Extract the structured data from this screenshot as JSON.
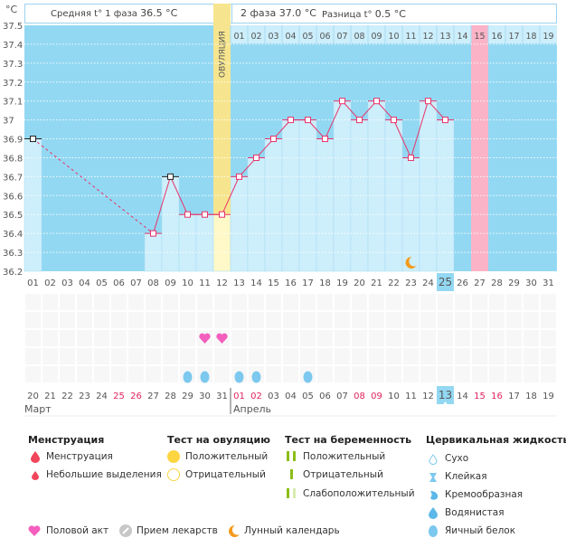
{
  "header": {
    "unit": "°C",
    "phase1_label": "Средняя t° 1 фаза",
    "phase1_value": "36.5 °C",
    "phase2_label": "2 фаза",
    "phase2_value": "37.0 °C",
    "diff_label": "Разница t°",
    "diff_value": "0.5 °C",
    "ovulation_label": "ОВУЛЯЦИЯ"
  },
  "chart_data": {
    "type": "line",
    "title": "",
    "xlabel": "Cycle day",
    "ylabel": "°C",
    "ylim": [
      36.2,
      37.5
    ],
    "yticks": [
      36.2,
      36.3,
      36.4,
      36.5,
      36.6,
      36.7,
      36.8,
      36.9,
      37,
      37.1,
      37.2,
      37.3,
      37.4,
      37.5
    ],
    "ytick_labels": [
      "36.2",
      "36.3",
      "36.4",
      "36.5",
      "36.6",
      "36.7",
      "36.8",
      "36.9",
      "37",
      "37.1",
      "37.2",
      "37.3",
      "37.4",
      "37.5"
    ],
    "cycle_days": [
      "01",
      "02",
      "03",
      "04",
      "05",
      "06",
      "07",
      "08",
      "09",
      "10",
      "11",
      "12",
      "13",
      "14",
      "15",
      "16",
      "17",
      "18",
      "19",
      "20",
      "21",
      "22",
      "23",
      "24",
      "25",
      "26",
      "27",
      "28",
      "29",
      "30",
      "31"
    ],
    "temperatures": [
      36.9,
      null,
      null,
      null,
      null,
      null,
      null,
      36.4,
      36.7,
      36.5,
      36.5,
      36.5,
      36.7,
      36.8,
      36.9,
      37.0,
      37.0,
      36.9,
      37.1,
      37.0,
      37.1,
      37.0,
      36.8,
      37.1,
      37.0,
      null,
      null,
      null,
      null,
      null,
      null
    ],
    "excluded_points_days": [
      "01",
      "09"
    ],
    "ovulation_day": "12",
    "luteal_day_numbers": [
      "01",
      "02",
      "03",
      "04",
      "05",
      "06",
      "07",
      "08",
      "09",
      "10",
      "11",
      "12",
      "13",
      "14",
      "15",
      "16",
      "17",
      "18",
      "19"
    ],
    "expected_period_luteal_day": "15",
    "expected_period_cycle_day": "27",
    "today_cycle_day": "25",
    "moon_day": "23",
    "grid": true
  },
  "calendar": {
    "dates": [
      {
        "d": "20",
        "weekend": false
      },
      {
        "d": "21",
        "weekend": false
      },
      {
        "d": "22",
        "weekend": false
      },
      {
        "d": "23",
        "weekend": false
      },
      {
        "d": "24",
        "weekend": false
      },
      {
        "d": "25",
        "weekend": true
      },
      {
        "d": "26",
        "weekend": true
      },
      {
        "d": "27",
        "weekend": false
      },
      {
        "d": "28",
        "weekend": false
      },
      {
        "d": "29",
        "weekend": false
      },
      {
        "d": "30",
        "weekend": false
      },
      {
        "d": "31",
        "weekend": false
      },
      {
        "d": "01",
        "weekend": true
      },
      {
        "d": "02",
        "weekend": true
      },
      {
        "d": "03",
        "weekend": false
      },
      {
        "d": "04",
        "weekend": false
      },
      {
        "d": "05",
        "weekend": false
      },
      {
        "d": "06",
        "weekend": false
      },
      {
        "d": "07",
        "weekend": false
      },
      {
        "d": "08",
        "weekend": true
      },
      {
        "d": "09",
        "weekend": true
      },
      {
        "d": "10",
        "weekend": false
      },
      {
        "d": "11",
        "weekend": false
      },
      {
        "d": "12",
        "weekend": false
      },
      {
        "d": "13",
        "weekend": false,
        "today": true
      },
      {
        "d": "14",
        "weekend": false
      },
      {
        "d": "15",
        "weekend": true
      },
      {
        "d": "16",
        "weekend": true
      },
      {
        "d": "17",
        "weekend": false
      },
      {
        "d": "18",
        "weekend": false
      },
      {
        "d": "19",
        "weekend": false
      }
    ],
    "month1": "Март",
    "month2": "Апрель",
    "intercourse_days": [
      "11",
      "12"
    ],
    "eggwhite_days": [
      "10",
      "11",
      "13",
      "14",
      "17"
    ]
  },
  "legend": {
    "menstruation": {
      "title": "Менструация",
      "items": [
        "Менструация",
        "Небольшие выделения"
      ]
    },
    "ovulation_test": {
      "title": "Тест на овуляцию",
      "items": [
        "Положительный",
        "Отрицательный"
      ]
    },
    "pregnancy_test": {
      "title": "Тест на беременность",
      "items": [
        "Положительный",
        "Отрицательный",
        "Слабоположительный"
      ]
    },
    "cervical_fluid": {
      "title": "Цервикальная жидкость",
      "items": [
        "Сухо",
        "Клейкая",
        "Кремообразная",
        "Водянистая",
        "Яичный белок"
      ]
    },
    "bottom": [
      "Половой акт",
      "Прием лекарств",
      "Лунный календарь"
    ]
  },
  "colors": {
    "sky": "#93d8f2",
    "bar": "#cdeefb",
    "line": "#e8336a",
    "ovulation": "#fdf2a8",
    "period": "#fbb3c8",
    "heart": "#f45fbe",
    "egg": "#7cc8ef",
    "moon": "#f39a1b",
    "weekend": "#e0245e"
  }
}
